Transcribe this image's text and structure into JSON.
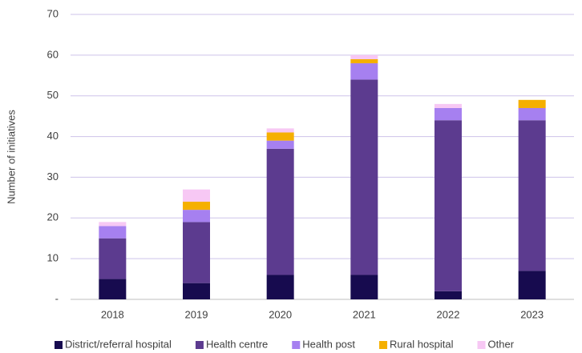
{
  "chart_data": {
    "type": "bar",
    "stacked": true,
    "y_label": "Number of initiatives",
    "categories": [
      "2018",
      "2019",
      "2020",
      "2021",
      "2022",
      "2023"
    ],
    "series": [
      {
        "name": "District/referral hospital",
        "color": "#170b4f",
        "values": [
          5,
          4,
          6,
          6,
          2,
          7
        ]
      },
      {
        "name": "Health centre",
        "color": "#5c3b8f",
        "values": [
          10,
          15,
          31,
          48,
          42,
          37
        ]
      },
      {
        "name": "Health post",
        "color": "#a680f0",
        "values": [
          3,
          3,
          2,
          4,
          3,
          3
        ]
      },
      {
        "name": "Rural hospital",
        "color": "#f5b000",
        "values": [
          0,
          2,
          2,
          1,
          0,
          2
        ]
      },
      {
        "name": "Other",
        "color": "#f7c8f4",
        "values": [
          1,
          3,
          1,
          1,
          1,
          0
        ]
      }
    ],
    "ylim": [
      0,
      70
    ],
    "yticks": [
      {
        "value": 0,
        "label": "-"
      },
      10,
      20,
      30,
      40,
      50,
      60,
      70
    ],
    "grid": true,
    "legend": "bottom"
  }
}
